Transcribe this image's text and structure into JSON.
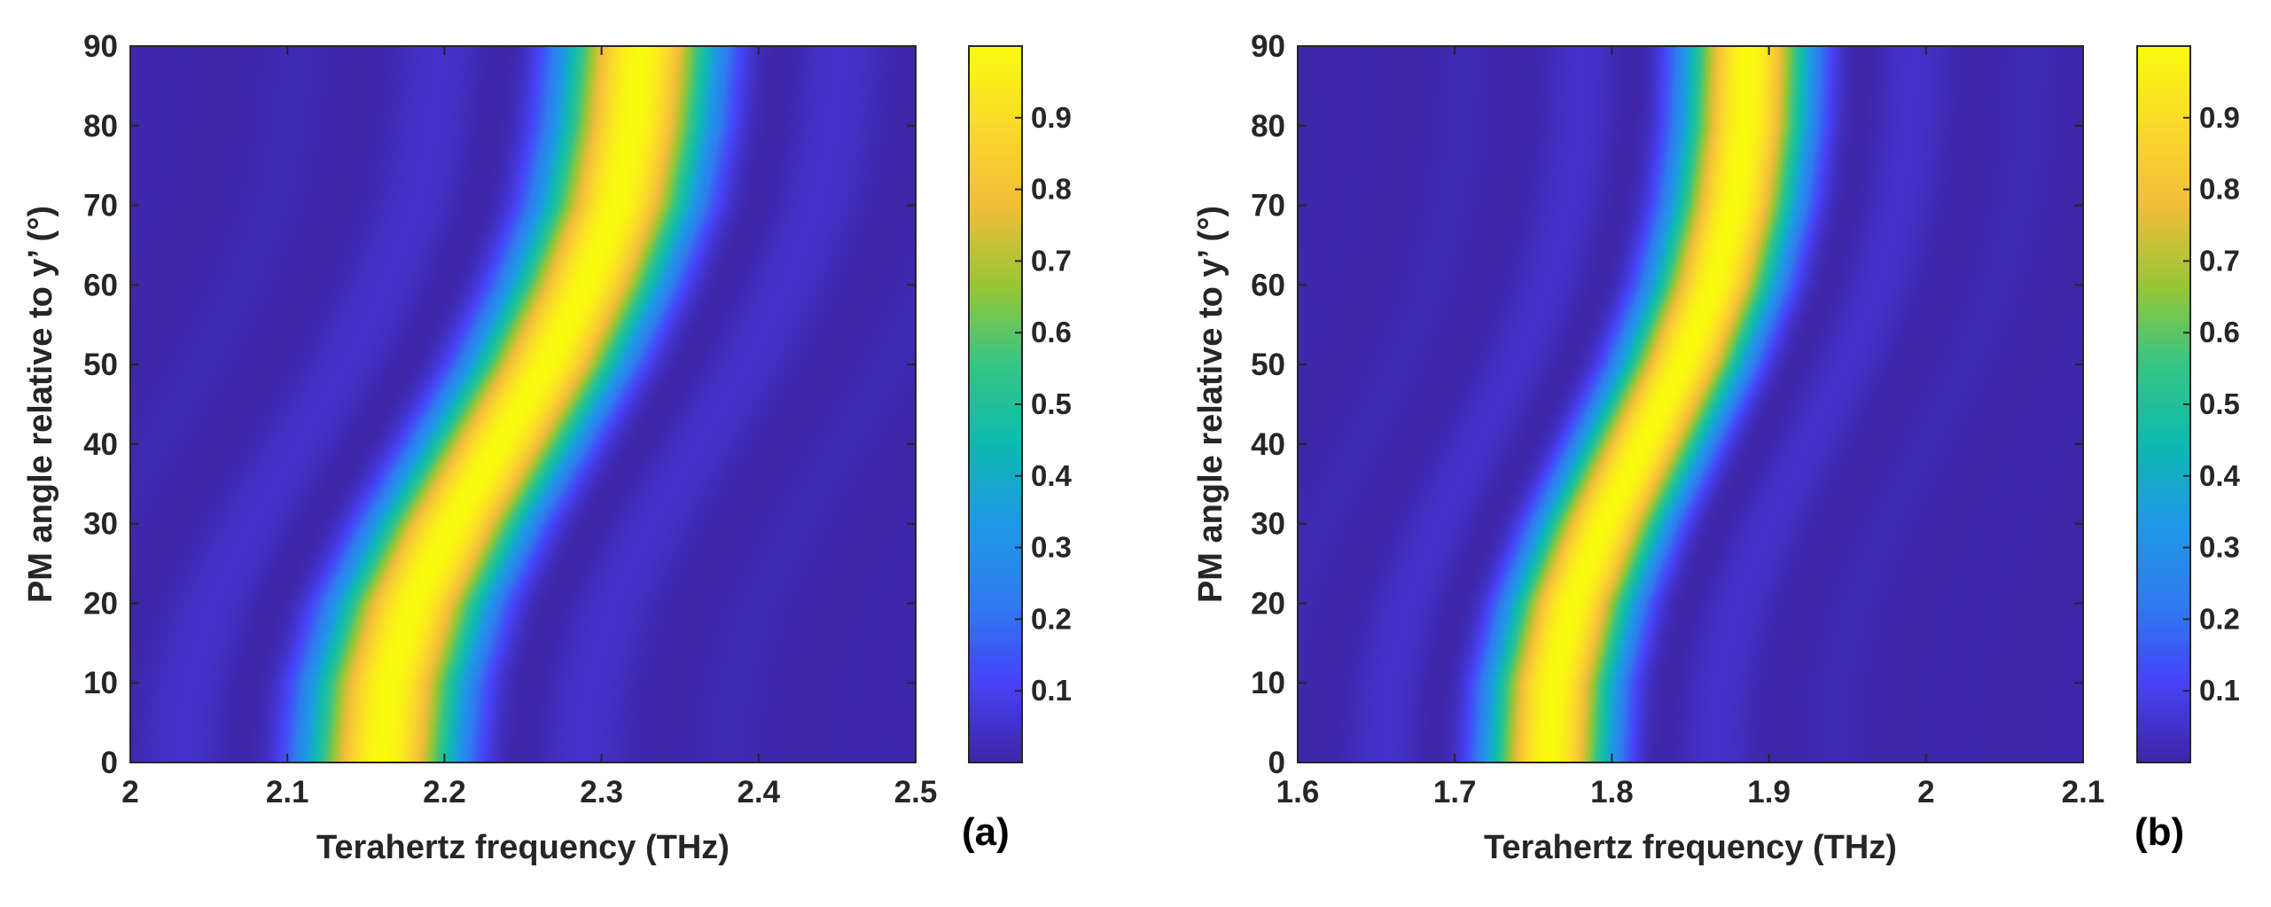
{
  "chart_data": [
    {
      "type": "heatmap",
      "panel_label": "(a)",
      "title": "",
      "xlabel": "Terahertz frequency (THz)",
      "ylabel": "PM angle relative to y’ (°)",
      "xlim": [
        2.0,
        2.5
      ],
      "ylim": [
        0,
        90
      ],
      "xticks": [
        2.0,
        2.1,
        2.2,
        2.3,
        2.4,
        2.5
      ],
      "xtick_labels": [
        "2",
        "2.1",
        "2.2",
        "2.3",
        "2.4",
        "2.5"
      ],
      "yticks": [
        0,
        10,
        20,
        30,
        40,
        50,
        60,
        70,
        80,
        90
      ],
      "ytick_labels": [
        "0",
        "10",
        "20",
        "30",
        "40",
        "50",
        "60",
        "70",
        "80",
        "90"
      ],
      "ridge": {
        "angles": [
          0,
          10,
          20,
          30,
          40,
          50,
          60,
          70,
          80,
          90
        ],
        "peak_frequency": [
          2.16,
          2.165,
          2.18,
          2.205,
          2.235,
          2.265,
          2.29,
          2.31,
          2.32,
          2.325
        ],
        "half_width_thz": 0.085
      },
      "colorbar": {
        "range": [
          0,
          1
        ],
        "ticks": [
          0.1,
          0.2,
          0.3,
          0.4,
          0.5,
          0.6,
          0.7,
          0.8,
          0.9
        ],
        "tick_labels": [
          "0.1",
          "0.2",
          "0.3",
          "0.4",
          "0.5",
          "0.6",
          "0.7",
          "0.8",
          "0.9"
        ]
      }
    },
    {
      "type": "heatmap",
      "panel_label": "(b)",
      "title": "",
      "xlabel": "Terahertz frequency (THz)",
      "ylabel": "PM angle relative to y’ (°)",
      "xlim": [
        1.6,
        2.1
      ],
      "ylim": [
        0,
        90
      ],
      "xticks": [
        1.6,
        1.7,
        1.8,
        1.9,
        2.0,
        2.1
      ],
      "xtick_labels": [
        "1.6",
        "1.7",
        "1.8",
        "1.9",
        "2",
        "2.1"
      ],
      "yticks": [
        0,
        10,
        20,
        30,
        40,
        50,
        60,
        70,
        80,
        90
      ],
      "ytick_labels": [
        "0",
        "10",
        "20",
        "30",
        "40",
        "50",
        "60",
        "70",
        "80",
        "90"
      ],
      "ridge": {
        "angles": [
          0,
          10,
          20,
          30,
          40,
          50,
          60,
          70,
          80,
          90
        ],
        "peak_frequency": [
          1.76,
          1.763,
          1.775,
          1.795,
          1.82,
          1.845,
          1.865,
          1.878,
          1.885,
          1.887
        ],
        "half_width_thz": 0.07
      },
      "colorbar": {
        "range": [
          0,
          1
        ],
        "ticks": [
          0.1,
          0.2,
          0.3,
          0.4,
          0.5,
          0.6,
          0.7,
          0.8,
          0.9
        ],
        "tick_labels": [
          "0.1",
          "0.2",
          "0.3",
          "0.4",
          "0.5",
          "0.6",
          "0.7",
          "0.8",
          "0.9"
        ]
      }
    }
  ],
  "colormap": {
    "name": "parula",
    "stops": [
      "#3e26a8",
      "#4743f8",
      "#2f7cef",
      "#1f99e6",
      "#0ebab0",
      "#35c586",
      "#98c634",
      "#f2bd3a",
      "#fbda2c",
      "#f9fb0e"
    ]
  }
}
